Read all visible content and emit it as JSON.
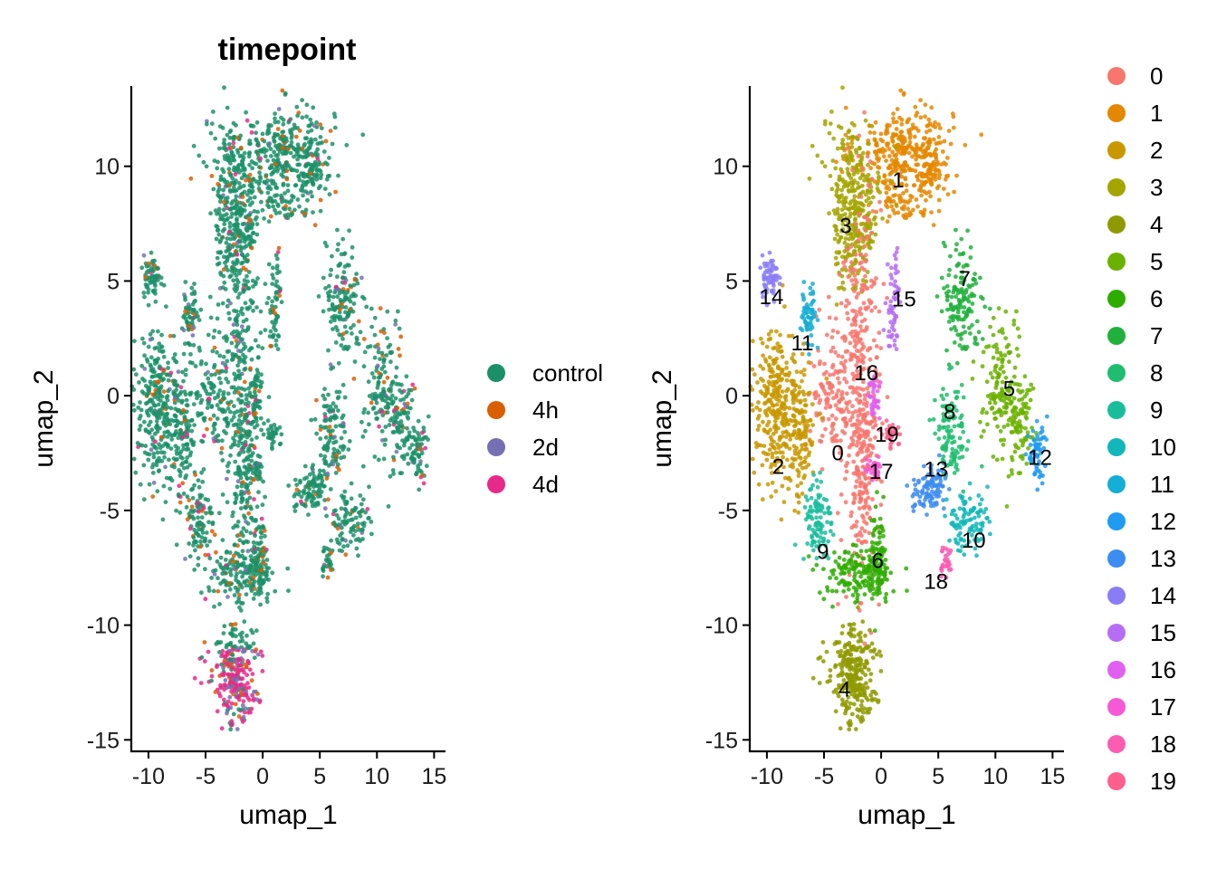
{
  "chart_data": [
    {
      "type": "scatter",
      "title": "timepoint",
      "xlabel": "umap_1",
      "ylabel": "umap_2",
      "xlim": [
        -11.5,
        16
      ],
      "ylim": [
        -15.5,
        13.5
      ],
      "xticks": [
        -10,
        -5,
        0,
        5,
        10,
        15
      ],
      "yticks": [
        -15,
        -10,
        -5,
        0,
        5,
        10
      ],
      "xtick_labels": [
        "-10",
        "-5",
        "0",
        "5",
        "10",
        "15"
      ],
      "ytick_labels": [
        "-15",
        "-10",
        "-5",
        "0",
        "5",
        "10"
      ],
      "grid": false,
      "legend_position": "right",
      "series": [
        {
          "name": "control",
          "color": "#1b9068"
        },
        {
          "name": "4h",
          "color": "#d95f02"
        },
        {
          "name": "2d",
          "color": "#7570b3"
        },
        {
          "name": "4d",
          "color": "#e7298a"
        }
      ]
    },
    {
      "type": "scatter",
      "xlabel": "umap_1",
      "ylabel": "umap_2",
      "xlim": [
        -11.5,
        16
      ],
      "ylim": [
        -15.5,
        13.5
      ],
      "xticks": [
        -10,
        -5,
        0,
        5,
        10,
        15
      ],
      "yticks": [
        -15,
        -10,
        -5,
        0,
        5,
        10
      ],
      "xtick_labels": [
        "-10",
        "-5",
        "0",
        "5",
        "10",
        "15"
      ],
      "ytick_labels": [
        "-15",
        "-10",
        "-5",
        "0",
        "5",
        "10"
      ],
      "grid": false,
      "legend_position": "right",
      "series": [
        {
          "name": "0",
          "color": "#f8766d",
          "label_x": -3.8,
          "label_y": -2.5
        },
        {
          "name": "1",
          "color": "#e58700",
          "label_x": 1.5,
          "label_y": 9.4
        },
        {
          "name": "2",
          "color": "#c99800",
          "label_x": -9.0,
          "label_y": -3.1
        },
        {
          "name": "3",
          "color": "#a3a500",
          "label_x": -3.1,
          "label_y": 7.4
        },
        {
          "name": "4",
          "color": "#8f9a00",
          "label_x": -3.2,
          "label_y": -12.8
        },
        {
          "name": "5",
          "color": "#6bb100",
          "label_x": 11.2,
          "label_y": 0.3
        },
        {
          "name": "6",
          "color": "#2ead00",
          "label_x": -0.3,
          "label_y": -7.2
        },
        {
          "name": "7",
          "color": "#21b03c",
          "label_x": 7.3,
          "label_y": 5.1
        },
        {
          "name": "8",
          "color": "#1fbd6f",
          "label_x": 6.0,
          "label_y": -0.7
        },
        {
          "name": "9",
          "color": "#19bd9c",
          "label_x": -5.1,
          "label_y": -6.8
        },
        {
          "name": "10",
          "color": "#12b7b9",
          "label_x": 8.1,
          "label_y": -6.3
        },
        {
          "name": "11",
          "color": "#14aed6",
          "label_x": -6.9,
          "label_y": 2.3
        },
        {
          "name": "12",
          "color": "#1f9bf2",
          "label_x": 13.9,
          "label_y": -2.7
        },
        {
          "name": "13",
          "color": "#3d8cf0",
          "label_x": 4.8,
          "label_y": -3.2
        },
        {
          "name": "14",
          "color": "#8b7cf6",
          "label_x": -9.6,
          "label_y": 4.3
        },
        {
          "name": "15",
          "color": "#b56ef3",
          "label_x": 2.0,
          "label_y": 4.2
        },
        {
          "name": "16",
          "color": "#e160f1",
          "label_x": -1.3,
          "label_y": 1.0
        },
        {
          "name": "17",
          "color": "#f659d5",
          "label_x": 0.0,
          "label_y": -3.3
        },
        {
          "name": "18",
          "color": "#fb5db3",
          "label_x": 4.8,
          "label_y": -8.1
        },
        {
          "name": "19",
          "color": "#ff5f8d",
          "label_x": 0.5,
          "label_y": -1.7
        }
      ]
    }
  ]
}
